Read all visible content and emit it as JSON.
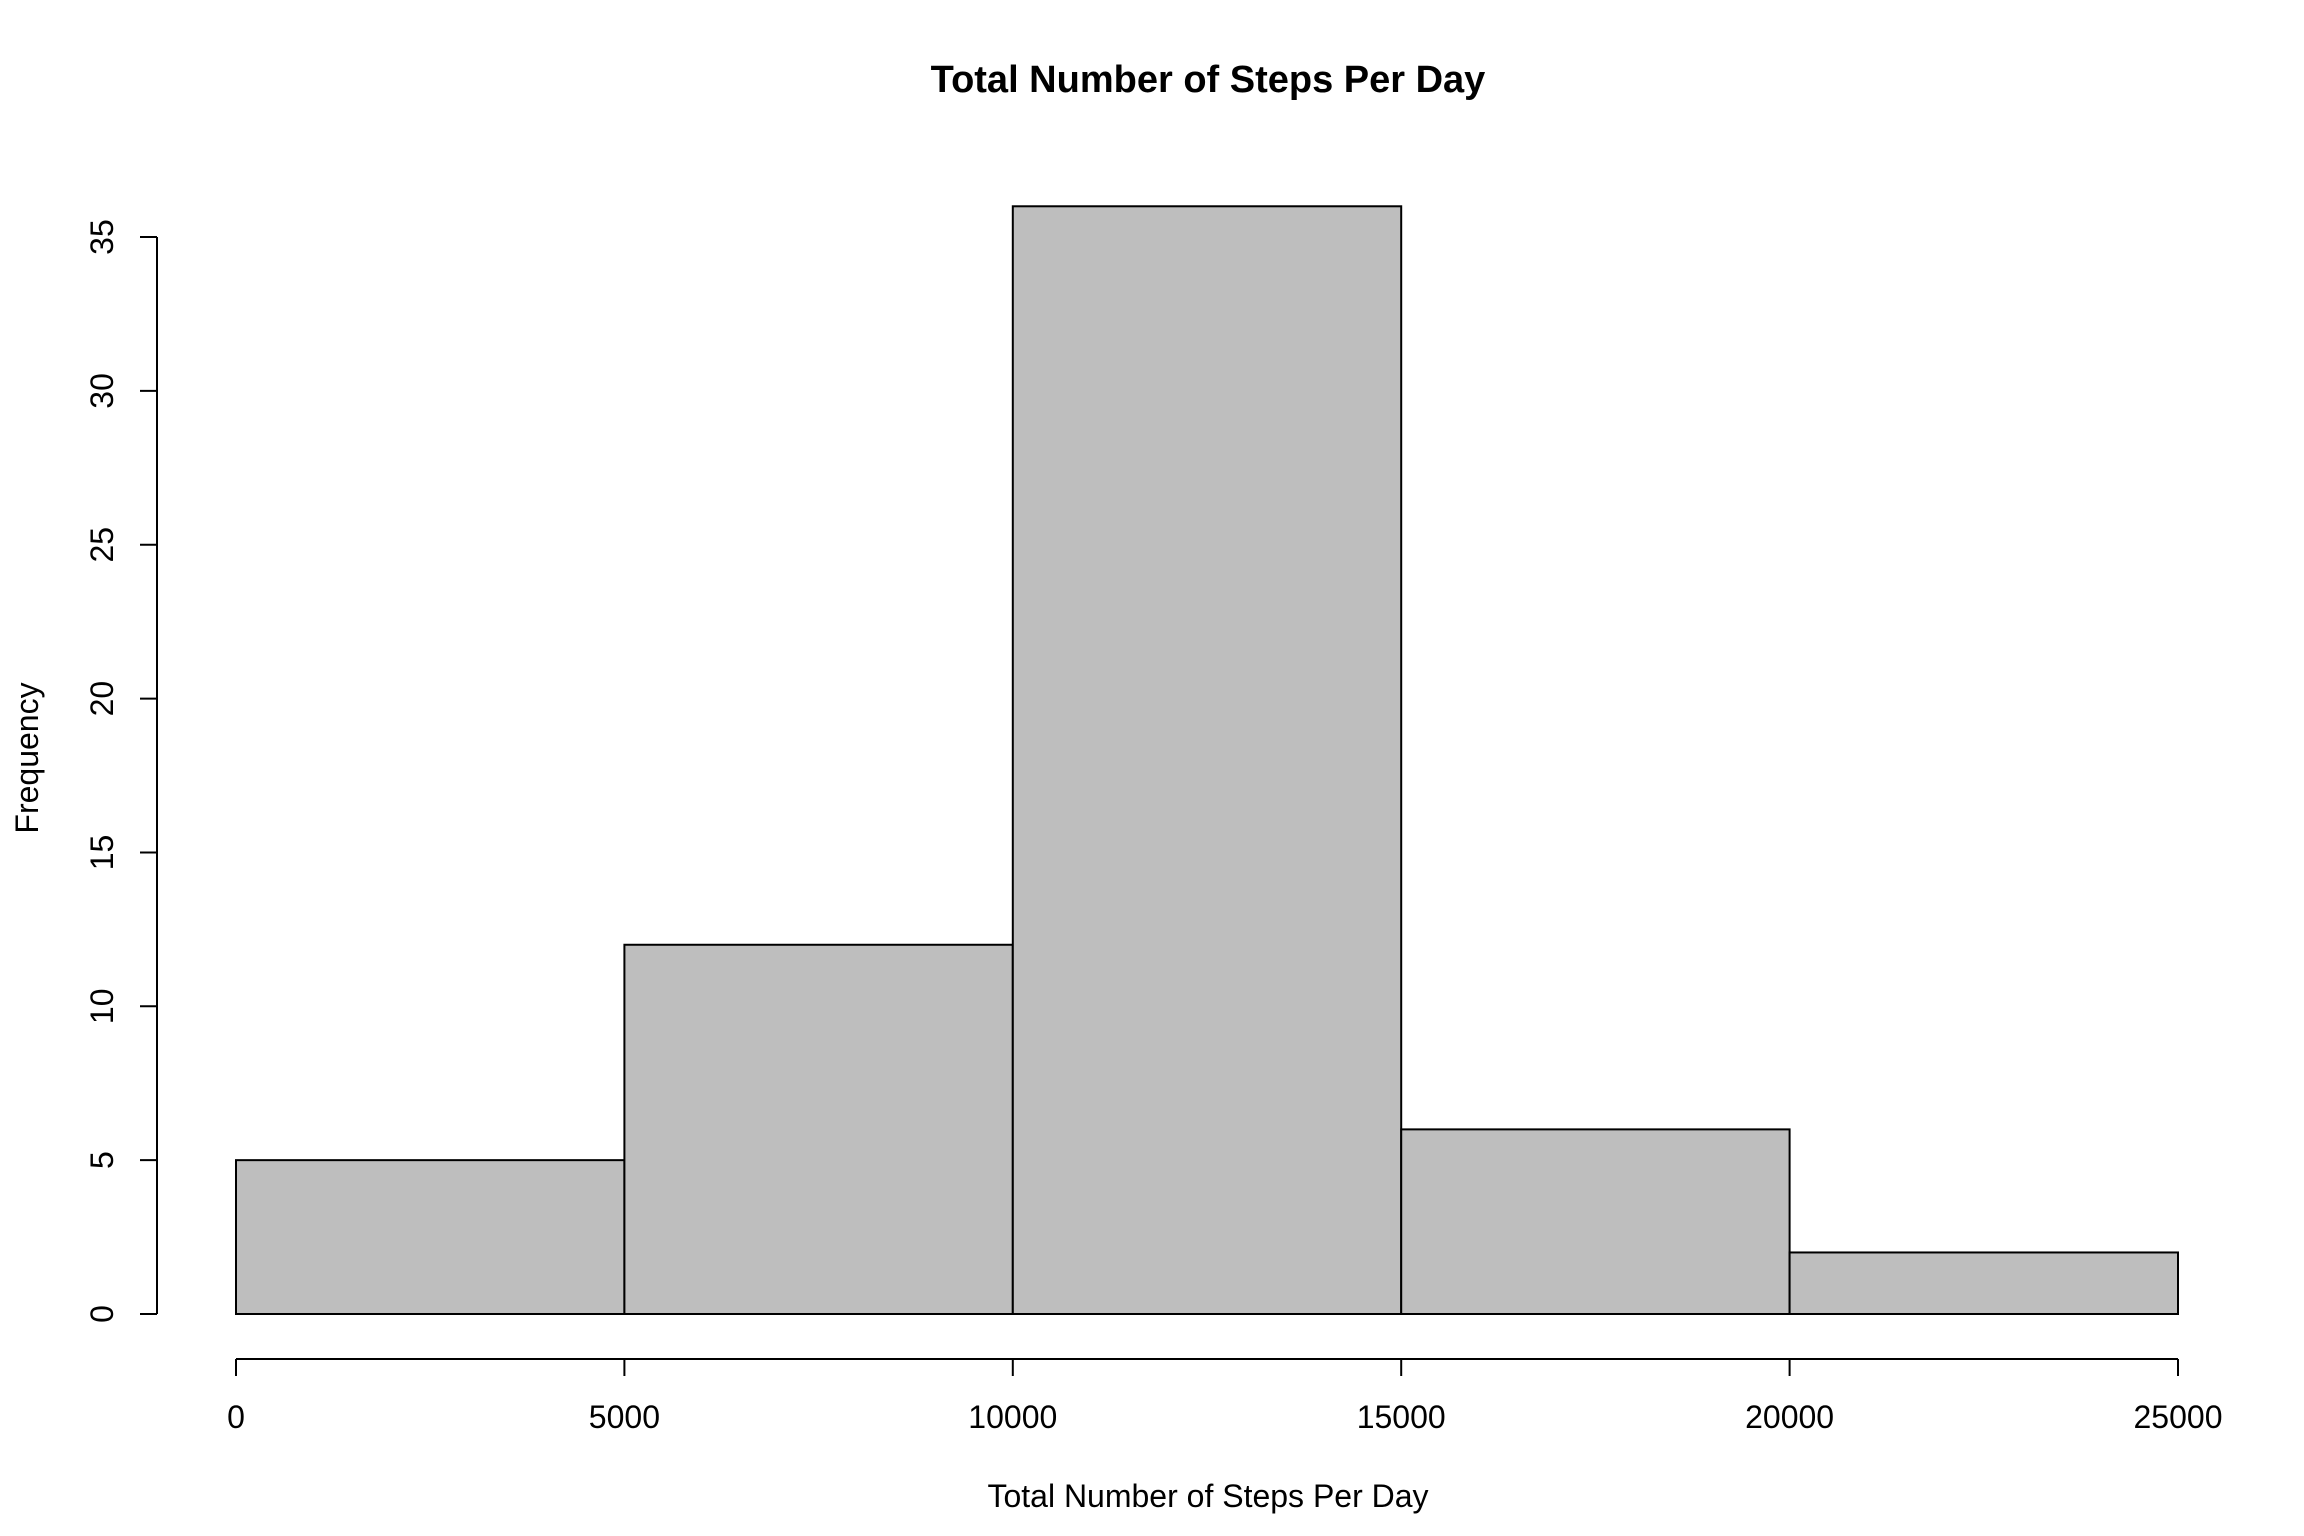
{
  "chart_data": {
    "type": "bar",
    "title": "Total Number of Steps Per Day",
    "xlabel": "Total Number of Steps Per Day",
    "ylabel": "Frequency",
    "bins": [
      {
        "start": 0,
        "end": 5000,
        "count": 5
      },
      {
        "start": 5000,
        "end": 10000,
        "count": 12
      },
      {
        "start": 10000,
        "end": 15000,
        "count": 36
      },
      {
        "start": 15000,
        "end": 20000,
        "count": 6
      },
      {
        "start": 20000,
        "end": 25000,
        "count": 2
      }
    ],
    "x_ticks": [
      0,
      5000,
      10000,
      15000,
      20000,
      25000
    ],
    "x_tick_labels": [
      "0",
      "5000",
      "10000",
      "15000",
      "20000",
      "25000"
    ],
    "y_ticks": [
      0,
      5,
      10,
      15,
      20,
      25,
      30,
      35
    ],
    "y_tick_labels": [
      "0",
      "5",
      "10",
      "15",
      "20",
      "25",
      "30",
      "35"
    ],
    "xlim": [
      0,
      25000
    ],
    "ylim": [
      0,
      36
    ],
    "grid": false,
    "bar_color": "#bebebe",
    "edge_color": "#000000"
  }
}
